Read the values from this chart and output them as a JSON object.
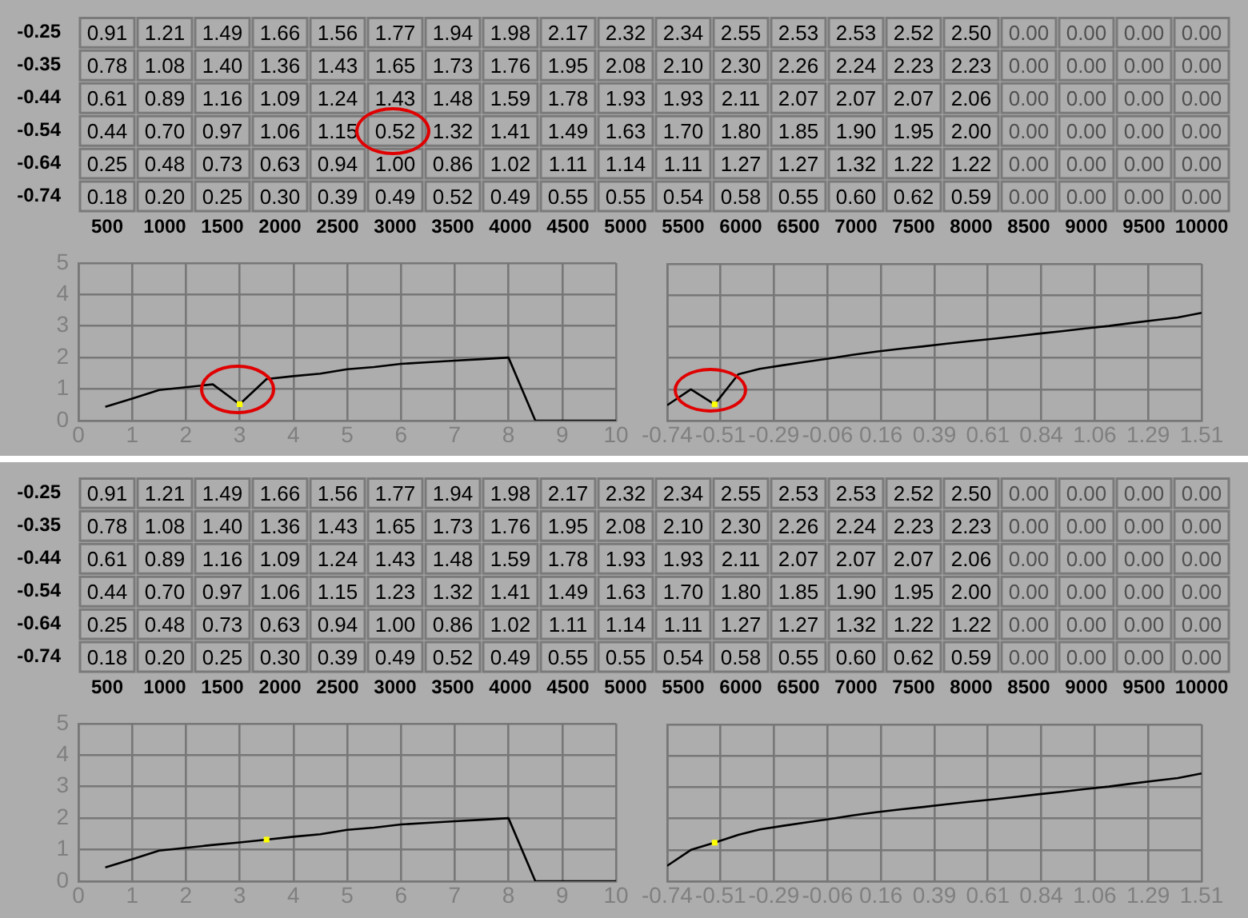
{
  "chart_data": [
    {
      "type": "heatmap",
      "categories": [
        "500",
        "1000",
        "1500",
        "2000",
        "2500",
        "3000",
        "3500",
        "4000",
        "4500",
        "5000",
        "5500",
        "6000",
        "6500",
        "7000",
        "7500",
        "8000",
        "8500",
        "9000",
        "9500",
        "10000"
      ],
      "y_categories": [
        "-0.25",
        "-0.35",
        "-0.44",
        "-0.54",
        "-0.64",
        "-0.74"
      ],
      "color": "#adadad",
      "data_labels": true,
      "cells": [
        [
          0.91,
          1.21,
          1.49,
          1.66,
          1.56,
          1.77,
          1.94,
          1.98,
          2.17,
          2.32,
          2.34,
          2.55,
          2.53,
          2.53,
          2.52,
          2.5,
          0,
          0,
          0,
          0
        ],
        [
          0.78,
          1.08,
          1.4,
          1.36,
          1.43,
          1.65,
          1.73,
          1.76,
          1.95,
          2.08,
          2.1,
          2.3,
          2.26,
          2.24,
          2.23,
          2.23,
          0,
          0,
          0,
          0
        ],
        [
          0.61,
          0.89,
          1.16,
          1.09,
          1.24,
          1.43,
          1.48,
          1.59,
          1.78,
          1.93,
          1.93,
          2.11,
          2.07,
          2.07,
          2.07,
          2.06,
          0,
          0,
          0,
          0
        ],
        [
          0.44,
          0.7,
          0.97,
          1.06,
          1.15,
          0.52,
          1.32,
          1.41,
          1.49,
          1.63,
          1.7,
          1.8,
          1.85,
          1.9,
          1.95,
          2.0,
          0,
          0,
          0,
          0
        ],
        [
          0.25,
          0.48,
          0.73,
          0.63,
          0.94,
          1.0,
          0.86,
          1.02,
          1.11,
          1.14,
          1.11,
          1.27,
          1.27,
          1.32,
          1.22,
          1.22,
          0,
          0,
          0,
          0
        ],
        [
          0.18,
          0.2,
          0.25,
          0.3,
          0.39,
          0.49,
          0.52,
          0.49,
          0.55,
          0.55,
          0.54,
          0.58,
          0.55,
          0.6,
          0.62,
          0.59,
          0,
          0,
          0,
          0
        ]
      ],
      "cell_labels": [
        [
          "0.91",
          "1.21",
          "1.49",
          "1.66",
          "1.56",
          "1.77",
          "1.94",
          "1.98",
          "2.17",
          "2.32",
          "2.34",
          "2.55",
          "2.53",
          "2.53",
          "2.52",
          "2.50",
          "0.00",
          "0.00",
          "0.00",
          "0.00"
        ],
        [
          "0.78",
          "1.08",
          "1.40",
          "1.36",
          "1.43",
          "1.65",
          "1.73",
          "1.76",
          "1.95",
          "2.08",
          "2.10",
          "2.30",
          "2.26",
          "2.24",
          "2.23",
          "2.23",
          "0.00",
          "0.00",
          "0.00",
          "0.00"
        ],
        [
          "0.61",
          "0.89",
          "1.16",
          "1.09",
          "1.24",
          "1.43",
          "1.48",
          "1.59",
          "1.78",
          "1.93",
          "1.93",
          "2.11",
          "2.07",
          "2.07",
          "2.07",
          "2.06",
          "0.00",
          "0.00",
          "0.00",
          "0.00"
        ],
        [
          "0.44",
          "0.70",
          "0.97",
          "1.06",
          "1.15",
          "0.52",
          "1.32",
          "1.41",
          "1.49",
          "1.63",
          "1.70",
          "1.80",
          "1.85",
          "1.90",
          "1.95",
          "2.00",
          "0.00",
          "0.00",
          "0.00",
          "0.00"
        ],
        [
          "0.25",
          "0.48",
          "0.73",
          "0.63",
          "0.94",
          "1.00",
          "0.86",
          "1.02",
          "1.11",
          "1.14",
          "1.11",
          "1.27",
          "1.27",
          "1.32",
          "1.22",
          "1.22",
          "0.00",
          "0.00",
          "0.00",
          "0.00"
        ],
        [
          "0.18",
          "0.20",
          "0.25",
          "0.30",
          "0.39",
          "0.49",
          "0.52",
          "0.49",
          "0.55",
          "0.55",
          "0.54",
          "0.58",
          "0.55",
          "0.60",
          "0.62",
          "0.59",
          "0.00",
          "0.00",
          "0.00",
          "0.00"
        ]
      ]
    },
    {
      "type": "line",
      "x": [
        0.5,
        1,
        1.5,
        2,
        2.5,
        3,
        3.5,
        4,
        4.5,
        5,
        5.5,
        6,
        6.5,
        7,
        7.5,
        8,
        8.5,
        9,
        9.5,
        10
      ],
      "xlim": [
        0,
        10
      ],
      "xticks": [
        0,
        1,
        2,
        3,
        4,
        5,
        6,
        7,
        8,
        9,
        10
      ],
      "ylim": [
        0,
        5
      ],
      "yticks": [
        0,
        1,
        2,
        3,
        4,
        5
      ],
      "grid": true,
      "legend": false,
      "marker": "none",
      "series": [
        {
          "color": "#000000",
          "values": [
            0.44,
            0.7,
            0.97,
            1.06,
            1.15,
            0.52,
            1.32,
            1.41,
            1.49,
            1.63,
            1.7,
            1.8,
            1.85,
            1.9,
            1.95,
            2.0,
            0,
            0,
            0,
            0
          ]
        },
        {
          "type": "scatter",
          "marker": "square",
          "color": "#ffff00",
          "x": [
            3
          ],
          "values": [
            0.52
          ]
        }
      ]
    },
    {
      "type": "line",
      "x": [
        -0.74,
        -0.64,
        -0.54,
        -0.44,
        -0.35,
        -0.25,
        -0.15,
        -0.05,
        0.04,
        0.14,
        0.24,
        0.34,
        0.43,
        0.53,
        0.63,
        0.73,
        0.82,
        0.92,
        1.02,
        1.12,
        1.21,
        1.31,
        1.41,
        1.51
      ],
      "xlim": [
        -0.74,
        1.51
      ],
      "xticks": [
        -0.74,
        {
          "value": -0.515,
          "label": "-0.51"
        },
        -0.29,
        {
          "value": -0.065,
          "label": "-0.06"
        },
        0.16,
        {
          "value": 0.385,
          "label": "0.39"
        },
        0.61,
        {
          "value": 0.835,
          "label": "0.84"
        },
        1.06,
        {
          "value": 1.285,
          "label": "1.29"
        },
        1.51
      ],
      "ylim": [
        0,
        5
      ],
      "yticks": [
        0,
        1,
        2,
        3,
        4,
        5
      ],
      "tick_labels": "x",
      "grid": true,
      "legend": false,
      "marker": "none",
      "series": [
        {
          "color": "#000000",
          "values": [
            0.49,
            1.0,
            0.52,
            1.48,
            1.65,
            1.77,
            1.88,
            1.99,
            2.1,
            2.2,
            2.29,
            2.37,
            2.45,
            2.53,
            2.61,
            2.69,
            2.77,
            2.85,
            2.94,
            3.02,
            3.11,
            3.2,
            3.29,
            3.44
          ]
        },
        {
          "type": "scatter",
          "marker": "square",
          "color": "#ffff00",
          "x": [
            -0.54
          ],
          "values": [
            0.52
          ]
        }
      ]
    },
    {
      "type": "heatmap",
      "categories": [
        "500",
        "1000",
        "1500",
        "2000",
        "2500",
        "3000",
        "3500",
        "4000",
        "4500",
        "5000",
        "5500",
        "6000",
        "6500",
        "7000",
        "7500",
        "8000",
        "8500",
        "9000",
        "9500",
        "10000"
      ],
      "y_categories": [
        "-0.25",
        "-0.35",
        "-0.44",
        "-0.54",
        "-0.64",
        "-0.74"
      ],
      "color": "#adadad",
      "data_labels": true,
      "cells": [
        [
          0.91,
          1.21,
          1.49,
          1.66,
          1.56,
          1.77,
          1.94,
          1.98,
          2.17,
          2.32,
          2.34,
          2.55,
          2.53,
          2.53,
          2.52,
          2.5,
          0,
          0,
          0,
          0
        ],
        [
          0.78,
          1.08,
          1.4,
          1.36,
          1.43,
          1.65,
          1.73,
          1.76,
          1.95,
          2.08,
          2.1,
          2.3,
          2.26,
          2.24,
          2.23,
          2.23,
          0,
          0,
          0,
          0
        ],
        [
          0.61,
          0.89,
          1.16,
          1.09,
          1.24,
          1.43,
          1.48,
          1.59,
          1.78,
          1.93,
          1.93,
          2.11,
          2.07,
          2.07,
          2.07,
          2.06,
          0,
          0,
          0,
          0
        ],
        [
          0.44,
          0.7,
          0.97,
          1.06,
          1.15,
          1.23,
          1.32,
          1.41,
          1.49,
          1.63,
          1.7,
          1.8,
          1.85,
          1.9,
          1.95,
          2.0,
          0,
          0,
          0,
          0
        ],
        [
          0.25,
          0.48,
          0.73,
          0.63,
          0.94,
          1.0,
          0.86,
          1.02,
          1.11,
          1.14,
          1.11,
          1.27,
          1.27,
          1.32,
          1.22,
          1.22,
          0,
          0,
          0,
          0
        ],
        [
          0.18,
          0.2,
          0.25,
          0.3,
          0.39,
          0.49,
          0.52,
          0.49,
          0.55,
          0.55,
          0.54,
          0.58,
          0.55,
          0.6,
          0.62,
          0.59,
          0,
          0,
          0,
          0
        ]
      ],
      "cell_labels": [
        [
          "0.91",
          "1.21",
          "1.49",
          "1.66",
          "1.56",
          "1.77",
          "1.94",
          "1.98",
          "2.17",
          "2.32",
          "2.34",
          "2.55",
          "2.53",
          "2.53",
          "2.52",
          "2.50",
          "0.00",
          "0.00",
          "0.00",
          "0.00"
        ],
        [
          "0.78",
          "1.08",
          "1.40",
          "1.36",
          "1.43",
          "1.65",
          "1.73",
          "1.76",
          "1.95",
          "2.08",
          "2.10",
          "2.30",
          "2.26",
          "2.24",
          "2.23",
          "2.23",
          "0.00",
          "0.00",
          "0.00",
          "0.00"
        ],
        [
          "0.61",
          "0.89",
          "1.16",
          "1.09",
          "1.24",
          "1.43",
          "1.48",
          "1.59",
          "1.78",
          "1.93",
          "1.93",
          "2.11",
          "2.07",
          "2.07",
          "2.07",
          "2.06",
          "0.00",
          "0.00",
          "0.00",
          "0.00"
        ],
        [
          "0.44",
          "0.70",
          "0.97",
          "1.06",
          "1.15",
          "1.23",
          "1.32",
          "1.41",
          "1.49",
          "1.63",
          "1.70",
          "1.80",
          "1.85",
          "1.90",
          "1.95",
          "2.00",
          "0.00",
          "0.00",
          "0.00",
          "0.00"
        ],
        [
          "0.25",
          "0.48",
          "0.73",
          "0.63",
          "0.94",
          "1.00",
          "0.86",
          "1.02",
          "1.11",
          "1.14",
          "1.11",
          "1.27",
          "1.27",
          "1.32",
          "1.22",
          "1.22",
          "0.00",
          "0.00",
          "0.00",
          "0.00"
        ],
        [
          "0.18",
          "0.20",
          "0.25",
          "0.30",
          "0.39",
          "0.49",
          "0.52",
          "0.49",
          "0.55",
          "0.55",
          "0.54",
          "0.58",
          "0.55",
          "0.60",
          "0.62",
          "0.59",
          "0.00",
          "0.00",
          "0.00",
          "0.00"
        ]
      ]
    },
    {
      "type": "line",
      "x": [
        0.5,
        1,
        1.5,
        2,
        2.5,
        3,
        3.5,
        4,
        4.5,
        5,
        5.5,
        6,
        6.5,
        7,
        7.5,
        8,
        8.5,
        9,
        9.5,
        10
      ],
      "xlim": [
        0,
        10
      ],
      "xticks": [
        0,
        1,
        2,
        3,
        4,
        5,
        6,
        7,
        8,
        9,
        10
      ],
      "ylim": [
        0,
        5
      ],
      "yticks": [
        0,
        1,
        2,
        3,
        4,
        5
      ],
      "grid": true,
      "legend": false,
      "marker": "none",
      "series": [
        {
          "color": "#000000",
          "values": [
            0.44,
            0.7,
            0.97,
            1.06,
            1.15,
            1.23,
            1.32,
            1.41,
            1.49,
            1.63,
            1.7,
            1.8,
            1.85,
            1.9,
            1.95,
            2.0,
            0,
            0,
            0,
            0
          ]
        },
        {
          "type": "scatter",
          "marker": "square",
          "color": "#ffff00",
          "x": [
            3.5
          ],
          "values": [
            1.32
          ]
        }
      ]
    },
    {
      "type": "line",
      "x": [
        -0.74,
        -0.64,
        -0.54,
        -0.44,
        -0.35,
        -0.25,
        -0.15,
        -0.05,
        0.04,
        0.14,
        0.24,
        0.34,
        0.43,
        0.53,
        0.63,
        0.73,
        0.82,
        0.92,
        1.02,
        1.12,
        1.21,
        1.31,
        1.41,
        1.51
      ],
      "xlim": [
        -0.74,
        1.51
      ],
      "xticks": [
        -0.74,
        {
          "value": -0.515,
          "label": "-0.51"
        },
        -0.29,
        {
          "value": -0.065,
          "label": "-0.06"
        },
        0.16,
        {
          "value": 0.385,
          "label": "0.39"
        },
        0.61,
        {
          "value": 0.835,
          "label": "0.84"
        },
        1.06,
        {
          "value": 1.285,
          "label": "1.29"
        },
        1.51
      ],
      "ylim": [
        0,
        5
      ],
      "yticks": [
        0,
        1,
        2,
        3,
        4,
        5
      ],
      "tick_labels": "x",
      "grid": true,
      "legend": false,
      "marker": "none",
      "series": [
        {
          "color": "#000000",
          "values": [
            0.49,
            1.0,
            1.23,
            1.48,
            1.65,
            1.77,
            1.88,
            1.99,
            2.1,
            2.2,
            2.29,
            2.37,
            2.45,
            2.53,
            2.61,
            2.69,
            2.77,
            2.85,
            2.94,
            3.02,
            3.11,
            3.2,
            3.29,
            3.44
          ]
        },
        {
          "type": "scatter",
          "marker": "square",
          "color": "#ffff00",
          "x": [
            -0.54
          ],
          "values": [
            1.23
          ]
        }
      ]
    }
  ]
}
